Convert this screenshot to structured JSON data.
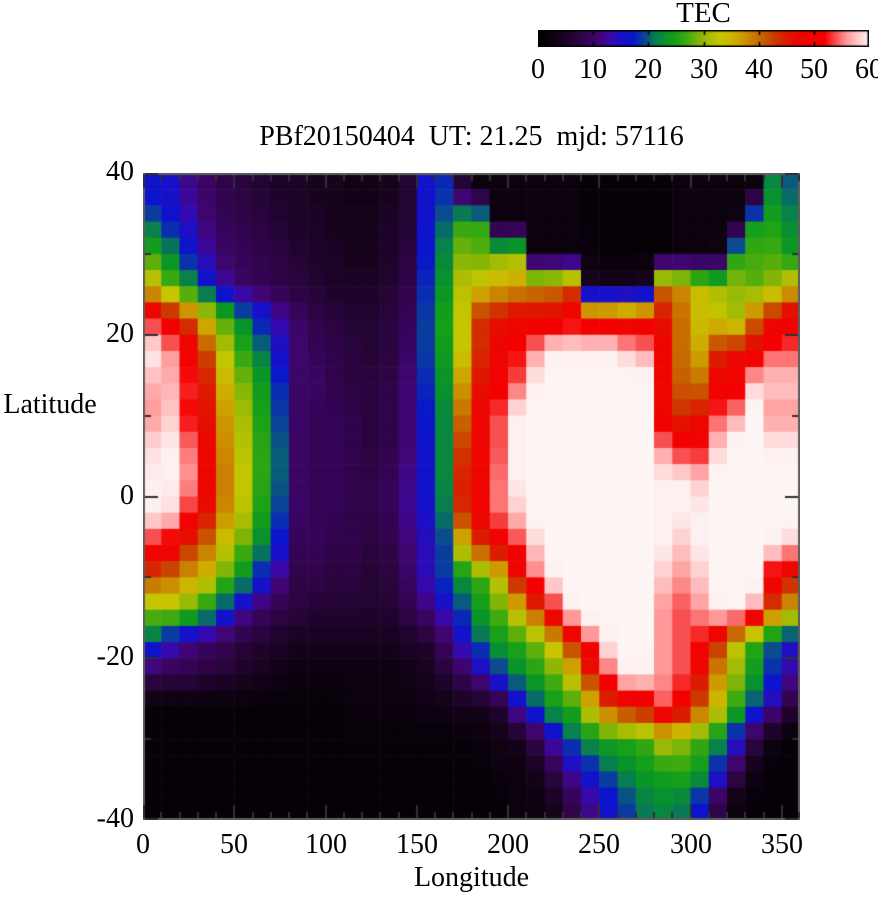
{
  "colorbar": {
    "title": "TEC",
    "tick_labels": [
      "0",
      "10",
      "20",
      "30",
      "40",
      "50",
      "60"
    ],
    "min": 0,
    "max": 60
  },
  "plot": {
    "title": "PBf20150404  UT: 21.25  mjd: 57116",
    "xlabel": "Longitude",
    "ylabel": "Latitude",
    "x_ticks": [
      "0",
      "50",
      "100",
      "150",
      "200",
      "250",
      "300",
      "350"
    ],
    "y_ticks": [
      "40",
      "20",
      "0",
      "-20",
      "-40"
    ]
  },
  "chart_data": {
    "type": "heatmap",
    "title": "PBf20150404  UT: 21.25  mjd: 57116",
    "xlabel": "Longitude",
    "ylabel": "Latitude",
    "colorbar_label": "TEC",
    "x_range": [
      0,
      360
    ],
    "y_range": [
      -40,
      40
    ],
    "color_range": [
      0,
      60
    ],
    "lon_bin_deg": 10,
    "lat_bin_deg": 4,
    "rows_order": "row 0 = lat band +36..+40 (top), row 19 = lat band -36..-40 (bottom); columns lon 0..360 in 10-deg bins",
    "values": [
      [
        16,
        15,
        12,
        10,
        8,
        7,
        6,
        5,
        5,
        4,
        4,
        3,
        3,
        4,
        6,
        16,
        18,
        6,
        2,
        2,
        2,
        2,
        2,
        2,
        1,
        1,
        1,
        1,
        1,
        2,
        2,
        2,
        2,
        2,
        22,
        20
      ],
      [
        20,
        17,
        14,
        11,
        9,
        8,
        7,
        6,
        5,
        5,
        4,
        4,
        4,
        5,
        6,
        16,
        20,
        26,
        26,
        2,
        2,
        2,
        2,
        2,
        1,
        1,
        1,
        1,
        1,
        2,
        2,
        2,
        3,
        24,
        25,
        22
      ],
      [
        26,
        22,
        17,
        13,
        10,
        9,
        8,
        7,
        6,
        5,
        5,
        4,
        4,
        5,
        7,
        17,
        22,
        29,
        28,
        29,
        30,
        2,
        2,
        2,
        2,
        1,
        1,
        1,
        1,
        2,
        2,
        3,
        25,
        27,
        27,
        24
      ],
      [
        34,
        28,
        23,
        17,
        13,
        10,
        9,
        8,
        7,
        6,
        5,
        5,
        5,
        6,
        8,
        18,
        23,
        32,
        34,
        36,
        37,
        38,
        39,
        42,
        5,
        4,
        4,
        5,
        40,
        38,
        34,
        31,
        30,
        28,
        30,
        34
      ],
      [
        52,
        48,
        42,
        34,
        27,
        22,
        17,
        13,
        10,
        8,
        7,
        6,
        6,
        7,
        9,
        19,
        25,
        33,
        44,
        46,
        48,
        48,
        48,
        50,
        48,
        48,
        46,
        48,
        46,
        40,
        34,
        33,
        31,
        40,
        46,
        50
      ],
      [
        60,
        56,
        50,
        42,
        32,
        26,
        21,
        15,
        11,
        9,
        8,
        7,
        6,
        7,
        10,
        19,
        24,
        33,
        44,
        48,
        52,
        56,
        60,
        60,
        60,
        60,
        58,
        56,
        48,
        40,
        36,
        44,
        46,
        48,
        54,
        54
      ],
      [
        57,
        57,
        53,
        45,
        35,
        29,
        24,
        18,
        10,
        10,
        8,
        7,
        7,
        8,
        11,
        18,
        23,
        37,
        46,
        50,
        54,
        60,
        62,
        62,
        62,
        62,
        62,
        62,
        48,
        41,
        40,
        48,
        50,
        58,
        58,
        58
      ],
      [
        56,
        58,
        52,
        46,
        37,
        31,
        25,
        19,
        10,
        9,
        9,
        8,
        7,
        8,
        11,
        17,
        22,
        40,
        48,
        54,
        60,
        62,
        62,
        62,
        62,
        62,
        62,
        62,
        48,
        44,
        46,
        54,
        56,
        62,
        56,
        56
      ],
      [
        59,
        60,
        55,
        47,
        38,
        32,
        26,
        20,
        10,
        9,
        9,
        8,
        7,
        8,
        11,
        16,
        22,
        43,
        48,
        54,
        60,
        62,
        62,
        62,
        62,
        62,
        62,
        62,
        56,
        52,
        52,
        58,
        62,
        62,
        60,
        60
      ],
      [
        60,
        60,
        56,
        48,
        39,
        33,
        26,
        20,
        10,
        9,
        9,
        8,
        8,
        9,
        12,
        16,
        22,
        45,
        48,
        55,
        60,
        62,
        62,
        62,
        62,
        62,
        62,
        62,
        60,
        60,
        58,
        62,
        62,
        62,
        62,
        62
      ],
      [
        60,
        59,
        53,
        46,
        38,
        32,
        25,
        19,
        10,
        9,
        9,
        8,
        8,
        9,
        12,
        15,
        21,
        44,
        48,
        55,
        58,
        62,
        62,
        62,
        62,
        62,
        62,
        62,
        60,
        60,
        60,
        62,
        62,
        62,
        62,
        62
      ],
      [
        52,
        50,
        44,
        40,
        33,
        28,
        22,
        16,
        9,
        9,
        8,
        8,
        7,
        8,
        11,
        14,
        19,
        34,
        44,
        49,
        53,
        58,
        62,
        62,
        62,
        62,
        62,
        62,
        60,
        58,
        60,
        62,
        62,
        62,
        60,
        58
      ],
      [
        42,
        40,
        37,
        34,
        28,
        23,
        17,
        12,
        8,
        8,
        7,
        7,
        6,
        7,
        10,
        14,
        19,
        23,
        27,
        33,
        46,
        55,
        60,
        62,
        62,
        62,
        62,
        62,
        58,
        56,
        58,
        62,
        62,
        62,
        50,
        46
      ],
      [
        30,
        31,
        28,
        24,
        18,
        13,
        10,
        8,
        7,
        6,
        6,
        6,
        6,
        6,
        8,
        11,
        14,
        19,
        24,
        28,
        34,
        42,
        52,
        60,
        62,
        62,
        62,
        62,
        56,
        54,
        56,
        60,
        62,
        56,
        42,
        36
      ],
      [
        19,
        15,
        12,
        10,
        9,
        7,
        6,
        5,
        4,
        4,
        4,
        4,
        4,
        4,
        5,
        6,
        10,
        15,
        20,
        24,
        26,
        29,
        35,
        44,
        54,
        60,
        62,
        62,
        56,
        54,
        52,
        44,
        33,
        26,
        20,
        15
      ],
      [
        9,
        8,
        8,
        7,
        6,
        5,
        4,
        3,
        2,
        2,
        2,
        2,
        2,
        2,
        3,
        4,
        6,
        9,
        13,
        18,
        22,
        25,
        28,
        34,
        44,
        54,
        60,
        60,
        56,
        54,
        46,
        38,
        30,
        24,
        18,
        13
      ],
      [
        1,
        1,
        1,
        1,
        1,
        1,
        1,
        1,
        1,
        1,
        1,
        2,
        2,
        2,
        2,
        3,
        3,
        4,
        4,
        6,
        14,
        19,
        24,
        26,
        34,
        42,
        46,
        48,
        54,
        50,
        42,
        34,
        26,
        19,
        13,
        7
      ],
      [
        1,
        1,
        1,
        1,
        1,
        1,
        1,
        1,
        1,
        1,
        1,
        1,
        1,
        1,
        1,
        1,
        1,
        1,
        2,
        3,
        4,
        8,
        14,
        20,
        23,
        25,
        26,
        27,
        32,
        30,
        27,
        23,
        16,
        8,
        3,
        1
      ],
      [
        1,
        1,
        1,
        1,
        1,
        1,
        1,
        1,
        1,
        1,
        1,
        1,
        1,
        1,
        1,
        1,
        1,
        1,
        1,
        2,
        2,
        4,
        8,
        13,
        17,
        20,
        22,
        24,
        25,
        26,
        24,
        17,
        9,
        3,
        1,
        1
      ],
      [
        1,
        1,
        1,
        1,
        1,
        1,
        1,
        1,
        1,
        1,
        1,
        1,
        1,
        1,
        1,
        1,
        1,
        1,
        1,
        1,
        2,
        2,
        4,
        8,
        12,
        16,
        19,
        21,
        22,
        21,
        17,
        8,
        2,
        1,
        1,
        1
      ]
    ],
    "palette_anchors": [
      [
        0,
        "#000000"
      ],
      [
        4,
        "#16031c"
      ],
      [
        8,
        "#30044a"
      ],
      [
        11,
        "#400572"
      ],
      [
        13,
        "#3a08a6"
      ],
      [
        15,
        "#1810c8"
      ],
      [
        17,
        "#0a14cc"
      ],
      [
        19,
        "#0a3ca0"
      ],
      [
        21,
        "#087a55"
      ],
      [
        23,
        "#089428"
      ],
      [
        25,
        "#18a018"
      ],
      [
        27,
        "#3faa10"
      ],
      [
        29,
        "#7cb408"
      ],
      [
        31,
        "#a8bc04"
      ],
      [
        33,
        "#c6c600"
      ],
      [
        35,
        "#cdb400"
      ],
      [
        37,
        "#cd9a00"
      ],
      [
        39,
        "#c97c00"
      ],
      [
        41,
        "#c85c00"
      ],
      [
        43,
        "#cc3a00"
      ],
      [
        45,
        "#dc1c00"
      ],
      [
        47,
        "#ec0600"
      ],
      [
        52,
        "#f40000"
      ],
      [
        54,
        "#f85050"
      ],
      [
        56,
        "#ff9898"
      ],
      [
        58,
        "#ffc8c8"
      ],
      [
        60,
        "#fdf0f0"
      ],
      [
        66,
        "#ffffff"
      ]
    ],
    "grid": false,
    "legend_position": "top-right colorbar"
  }
}
